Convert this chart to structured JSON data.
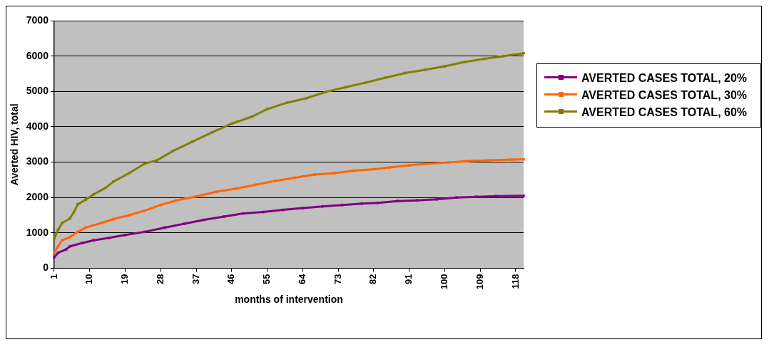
{
  "chart_data": {
    "type": "line",
    "xlabel": "months of intervention",
    "ylabel": "Averted HIV, total",
    "xlim": [
      1,
      120
    ],
    "xticks": [
      1,
      10,
      19,
      28,
      37,
      46,
      55,
      64,
      73,
      82,
      91,
      100,
      109,
      118
    ],
    "ylim": [
      0,
      7000
    ],
    "yticks": [
      0,
      1000,
      2000,
      3000,
      4000,
      5000,
      6000,
      7000
    ],
    "grid": "y",
    "legend": "right",
    "marker": "square",
    "line_style": "solid",
    "series": [
      {
        "name": "AVERTED CASES TOTAL, 20%",
        "color": "#800080",
        "x": [
          1,
          2,
          4,
          5,
          8,
          11,
          15,
          19,
          24,
          29,
          34,
          39,
          44,
          49,
          54,
          59,
          64,
          69,
          74,
          79,
          83,
          88,
          93,
          98,
          103,
          108,
          113,
          120
        ],
        "values": [
          310,
          440,
          530,
          620,
          710,
          790,
          860,
          940,
          1030,
          1150,
          1260,
          1370,
          1460,
          1550,
          1590,
          1650,
          1700,
          1750,
          1790,
          1830,
          1850,
          1900,
          1920,
          1950,
          2000,
          2020,
          2040,
          2050
        ]
      },
      {
        "name": "AVERTED CASES TOTAL, 30%",
        "color": "#ff6600",
        "x": [
          1,
          2,
          3,
          5,
          7,
          9,
          13,
          16,
          20,
          24,
          28,
          32,
          37,
          42,
          47,
          52,
          57,
          62,
          67,
          72,
          77,
          82,
          86,
          91,
          96,
          101,
          106,
          111,
          117,
          120
        ],
        "values": [
          440,
          620,
          790,
          880,
          1030,
          1150,
          1280,
          1390,
          1500,
          1630,
          1790,
          1920,
          2030,
          2160,
          2250,
          2360,
          2470,
          2560,
          2650,
          2690,
          2760,
          2800,
          2850,
          2910,
          2960,
          2990,
          3030,
          3050,
          3070,
          3080
        ]
      },
      {
        "name": "AVERTED CASES TOTAL, 60%",
        "color": "#808000",
        "x": [
          1,
          2,
          3,
          5,
          6,
          7,
          9,
          11,
          14,
          16,
          20,
          24,
          27,
          31,
          36,
          41,
          46,
          51,
          55,
          60,
          65,
          70,
          75,
          80,
          85,
          90,
          95,
          100,
          105,
          110,
          115,
          120
        ],
        "values": [
          840,
          1090,
          1280,
          1410,
          1590,
          1810,
          1940,
          2090,
          2270,
          2450,
          2690,
          2960,
          3050,
          3310,
          3580,
          3840,
          4090,
          4280,
          4500,
          4680,
          4810,
          4990,
          5120,
          5250,
          5390,
          5520,
          5610,
          5710,
          5830,
          5920,
          6000,
          6080
        ]
      }
    ]
  }
}
